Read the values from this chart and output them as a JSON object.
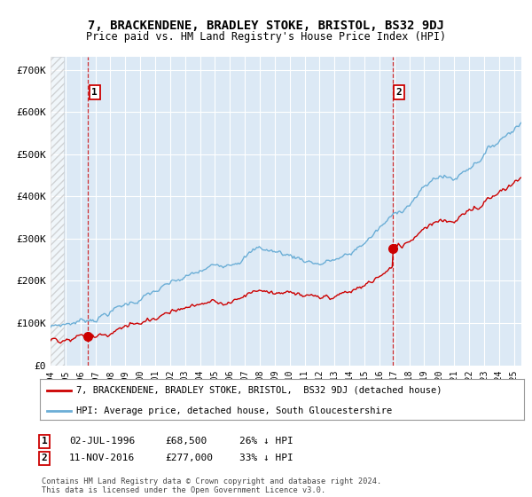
{
  "title": "7, BRACKENDENE, BRADLEY STOKE, BRISTOL, BS32 9DJ",
  "subtitle": "Price paid vs. HM Land Registry's House Price Index (HPI)",
  "ylim": [
    0,
    730000
  ],
  "yticks": [
    0,
    100000,
    200000,
    300000,
    400000,
    500000,
    600000,
    700000
  ],
  "ytick_labels": [
    "£0",
    "£100K",
    "£200K",
    "£300K",
    "£400K",
    "£500K",
    "£600K",
    "£700K"
  ],
  "background_color": "#dce9f5",
  "grid_color": "#ffffff",
  "hpi_color": "#6baed6",
  "price_color": "#cc0000",
  "marker1_date": 1996.5,
  "marker1_price": 68500,
  "marker2_date": 2016.87,
  "marker2_price": 277000,
  "marker1_text": "02-JUL-1996",
  "marker1_price_text": "£68,500",
  "marker1_hpi_text": "26% ↓ HPI",
  "marker2_text": "11-NOV-2016",
  "marker2_price_text": "£277,000",
  "marker2_hpi_text": "33% ↓ HPI",
  "legend_line1": "7, BRACKENDENE, BRADLEY STOKE, BRISTOL,  BS32 9DJ (detached house)",
  "legend_line2": "HPI: Average price, detached house, South Gloucestershire",
  "footnote": "Contains HM Land Registry data © Crown copyright and database right 2024.\nThis data is licensed under the Open Government Licence v3.0.",
  "xmin": 1994,
  "xmax": 2025.5
}
